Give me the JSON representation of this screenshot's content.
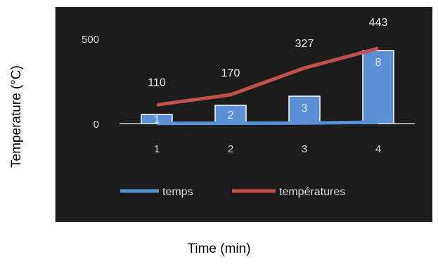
{
  "chart_data": {
    "type": "bar+line",
    "xlabel": "Time (min)",
    "ylabel": "Temperature (°C)",
    "categories": [
      "1",
      "2",
      "3",
      "4"
    ],
    "y_ticks": [
      "0",
      "500"
    ],
    "ylim": [
      0,
      700
    ],
    "series": [
      {
        "name": "temps",
        "type": "bar",
        "color": "#5b8fd6",
        "values": [
          1,
          2,
          3,
          8
        ]
      },
      {
        "name": "températures",
        "type": "line",
        "color": "#c0504d",
        "values": [
          110,
          170,
          327,
          443
        ]
      }
    ],
    "legend_position": "bottom",
    "background": "#1c1c1c"
  }
}
